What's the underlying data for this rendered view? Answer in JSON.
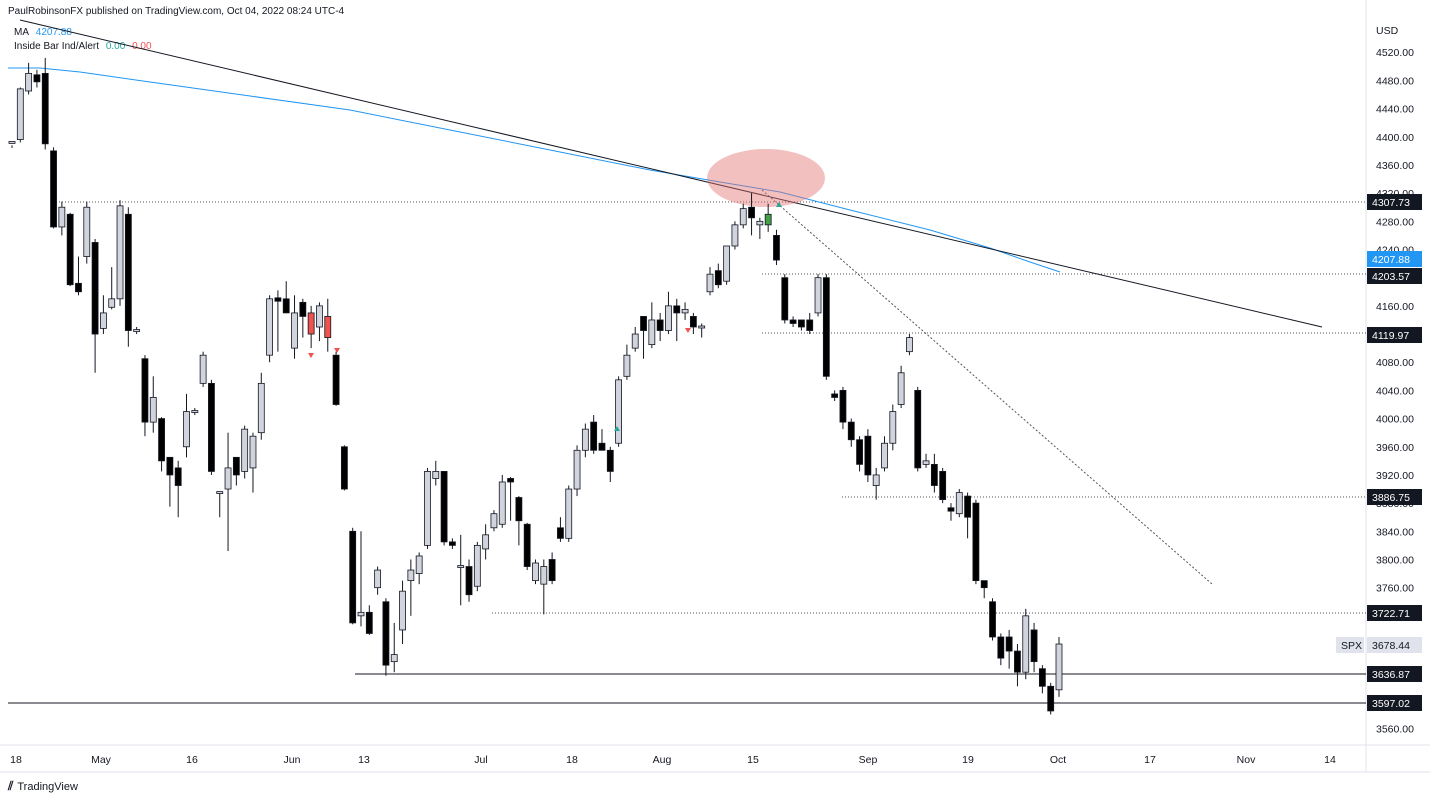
{
  "header": {
    "publisher": "PaulRobinsonFX published on TradingView.com, Oct 04, 2022 08:24 UTC-4"
  },
  "legend": {
    "ma": {
      "label": "MA",
      "value": "4207.88",
      "color": "#2196f3"
    },
    "inside_bar": {
      "label": "Inside Bar Ind/Alert",
      "v1": "0.00",
      "v1_color": "#26a69a",
      "v2": "0.00",
      "v2_color": "#ef5350"
    }
  },
  "footer": {
    "brand": "TradingView"
  },
  "chart_data": {
    "type": "candlestick",
    "currency": "USD",
    "symbol": "SPX",
    "y_range": [
      3540,
      4550
    ],
    "y_ticks": [
      3560,
      3600,
      3640,
      3680,
      3720,
      3760,
      3800,
      3840,
      3880,
      3920,
      3960,
      4000,
      4040,
      4080,
      4120,
      4160,
      4200,
      4240,
      4280,
      4320,
      4360,
      4400,
      4440,
      4480,
      4520
    ],
    "x_labels": [
      "18",
      "May",
      "16",
      "Jun",
      "13",
      "Jul",
      "18",
      "Aug",
      "15",
      "Sep",
      "19",
      "Oct",
      "17",
      "Nov",
      "14"
    ],
    "price_labels": [
      {
        "value": 4307.73,
        "text": "4307.73",
        "bg": "#131722",
        "fg": "#ffffff"
      },
      {
        "value": 4207.88,
        "text": "4207.88",
        "bg": "#2196f3",
        "fg": "#ffffff"
      },
      {
        "value": 4203.57,
        "text": "4203.57",
        "bg": "#131722",
        "fg": "#ffffff"
      },
      {
        "value": 4119.97,
        "text": "4119.97",
        "bg": "#131722",
        "fg": "#ffffff"
      },
      {
        "value": 3886.75,
        "text": "3886.75",
        "bg": "#131722",
        "fg": "#ffffff"
      },
      {
        "value": 3722.71,
        "text": "3722.71",
        "bg": "#131722",
        "fg": "#ffffff"
      },
      {
        "value": 3678.44,
        "text": "3678.44",
        "bg": "#e0e3eb",
        "fg": "#131722",
        "tag": "SPX"
      },
      {
        "value": 3636.87,
        "text": "3636.87",
        "bg": "#131722",
        "fg": "#ffffff"
      },
      {
        "value": 3597.02,
        "text": "3597.02",
        "bg": "#131722",
        "fg": "#ffffff"
      }
    ],
    "candles": [
      [
        4392,
        4392,
        4388,
        4384
      ],
      [
        4396,
        4468,
        4470,
        4392
      ],
      [
        4465,
        4490,
        4505,
        4460
      ],
      [
        4488,
        4478,
        4495,
        4470
      ],
      [
        4490,
        4390,
        4512,
        4382
      ],
      [
        4380,
        4272,
        4385,
        4270
      ],
      [
        4272,
        4300,
        4308,
        4260
      ],
      [
        4290,
        4190,
        4292,
        4188
      ],
      [
        4192,
        4180,
        4230,
        4175
      ],
      [
        4230,
        4300,
        4308,
        4220
      ],
      [
        4250,
        4120,
        4255,
        4065
      ],
      [
        4128,
        4150,
        4175,
        4120
      ],
      [
        4158,
        4170,
        4215,
        4155
      ],
      [
        4170,
        4302,
        4310,
        4160
      ],
      [
        4290,
        4125,
        4300,
        4102
      ],
      [
        4125,
        4125,
        4130,
        4120
      ],
      [
        4085,
        3995,
        4090,
        3975
      ],
      [
        3995,
        4030,
        4060,
        3980
      ],
      [
        4000,
        3940,
        4002,
        3925
      ],
      [
        3945,
        3920,
        3945,
        3875
      ],
      [
        3930,
        3905,
        3940,
        3860
      ],
      [
        3960,
        4010,
        4035,
        3945
      ],
      [
        4010,
        4010,
        4015,
        4005
      ],
      [
        4050,
        4090,
        4095,
        4045
      ],
      [
        4050,
        3925,
        4055,
        3920
      ],
      [
        3895,
        3895,
        3896,
        3860
      ],
      [
        3900,
        3930,
        3980,
        3812
      ],
      [
        3945,
        3920,
        3945,
        3905
      ],
      [
        3925,
        3985,
        3990,
        3915
      ],
      [
        3930,
        3975,
        3980,
        3895
      ],
      [
        3980,
        4050,
        4065,
        3970
      ],
      [
        4090,
        4170,
        4175,
        4080
      ],
      [
        4170,
        4168,
        4182,
        4095
      ],
      [
        4170,
        4150,
        4195,
        4150
      ],
      [
        4100,
        4150,
        4175,
        4085
      ],
      [
        4165,
        4145,
        4170,
        4115
      ],
      [
        4150,
        4120,
        4160,
        4100
      ],
      [
        4130,
        4160,
        4165,
        4110
      ],
      [
        4145,
        4115,
        4170,
        4095
      ],
      [
        4090,
        4020,
        4095,
        4018
      ],
      [
        3960,
        3900,
        3962,
        3898
      ],
      [
        3840,
        3710,
        3845,
        3708
      ],
      [
        3720,
        3725,
        3840,
        3705
      ],
      [
        3725,
        3695,
        3735,
        3693
      ],
      [
        3760,
        3785,
        3790,
        3750
      ],
      [
        3740,
        3650,
        3745,
        3635
      ],
      [
        3655,
        3665,
        3710,
        3640
      ],
      [
        3700,
        3755,
        3770,
        3680
      ],
      [
        3770,
        3785,
        3800,
        3720
      ],
      [
        3780,
        3805,
        3810,
        3765
      ],
      [
        3820,
        3925,
        3930,
        3815
      ],
      [
        3915,
        3925,
        3940,
        3905
      ],
      [
        3925,
        3825,
        3925,
        3820
      ],
      [
        3825,
        3820,
        3830,
        3815
      ],
      [
        3790,
        3790,
        3835,
        3735
      ],
      [
        3790,
        3750,
        3800,
        3740
      ],
      [
        3762,
        3820,
        3825,
        3755
      ],
      [
        3815,
        3835,
        3850,
        3800
      ],
      [
        3845,
        3865,
        3870,
        3840
      ],
      [
        3850,
        3910,
        3920,
        3845
      ],
      [
        3915,
        3910,
        3917,
        3855
      ],
      [
        3888,
        3855,
        3890,
        3820
      ],
      [
        3850,
        3790,
        3852,
        3785
      ],
      [
        3770,
        3795,
        3800,
        3765
      ],
      [
        3765,
        3790,
        3800,
        3722
      ],
      [
        3800,
        3770,
        3810,
        3765
      ],
      [
        3845,
        3830,
        3860,
        3825
      ],
      [
        3830,
        3900,
        3905,
        3825
      ],
      [
        3900,
        3955,
        3962,
        3890
      ],
      [
        3955,
        3985,
        3993,
        3945
      ],
      [
        3995,
        3955,
        4005,
        3950
      ],
      [
        3965,
        3955,
        3985,
        3955
      ],
      [
        3955,
        3925,
        3960,
        3910
      ],
      [
        3965,
        4055,
        4060,
        3960
      ],
      [
        4060,
        4090,
        4105,
        4055
      ],
      [
        4100,
        4120,
        4130,
        4095
      ],
      [
        4145,
        4125,
        4145,
        4085
      ],
      [
        4105,
        4140,
        4165,
        4100
      ],
      [
        4140,
        4125,
        4150,
        4110
      ],
      [
        4125,
        4160,
        4180,
        4120
      ],
      [
        4160,
        4150,
        4170,
        4110
      ],
      [
        4150,
        4155,
        4165,
        4140
      ],
      [
        4145,
        4130,
        4150,
        4120
      ],
      [
        4130,
        4130,
        4135,
        4115
      ],
      [
        4180,
        4205,
        4215,
        4175
      ],
      [
        4210,
        4190,
        4220,
        4185
      ],
      [
        4195,
        4245,
        4245,
        4190
      ],
      [
        4245,
        4275,
        4280,
        4240
      ],
      [
        4275,
        4298,
        4305,
        4270
      ],
      [
        4300,
        4285,
        4320,
        4260
      ],
      [
        4275,
        4280,
        4285,
        4255
      ],
      [
        4275,
        4290,
        4305,
        4265
      ],
      [
        4260,
        4225,
        4268,
        4218
      ],
      [
        4200,
        4140,
        4205,
        4135
      ],
      [
        4140,
        4135,
        4145,
        4130
      ],
      [
        4140,
        4130,
        4140,
        4125
      ],
      [
        4140,
        4125,
        4150,
        4120
      ],
      [
        4150,
        4200,
        4205,
        4145
      ],
      [
        4200,
        4060,
        4205,
        4055
      ],
      [
        4035,
        4030,
        4040,
        4025
      ],
      [
        4040,
        3995,
        4045,
        3985
      ],
      [
        3995,
        3970,
        4000,
        3960
      ],
      [
        3970,
        3935,
        3975,
        3925
      ],
      [
        3975,
        3920,
        3985,
        3910
      ],
      [
        3905,
        3920,
        3930,
        3885
      ],
      [
        3930,
        3965,
        3975,
        3925
      ],
      [
        3965,
        4010,
        4020,
        3955
      ],
      [
        4020,
        4065,
        4075,
        4015
      ],
      [
        4095,
        4115,
        4120,
        4090
      ],
      [
        4040,
        3930,
        4045,
        3925
      ],
      [
        3935,
        3940,
        3950,
        3930
      ],
      [
        3935,
        3905,
        3950,
        3895
      ],
      [
        3925,
        3885,
        3930,
        3880
      ],
      [
        3872,
        3870,
        3880,
        3855
      ],
      [
        3865,
        3895,
        3900,
        3860
      ],
      [
        3890,
        3860,
        3895,
        3830
      ],
      [
        3880,
        3770,
        3885,
        3765
      ],
      [
        3770,
        3760,
        3770,
        3745
      ],
      [
        3740,
        3690,
        3745,
        3685
      ],
      [
        3690,
        3660,
        3695,
        3650
      ],
      [
        3690,
        3670,
        3700,
        3645
      ],
      [
        3670,
        3640,
        3680,
        3620
      ],
      [
        3640,
        3720,
        3730,
        3630
      ],
      [
        3700,
        3655,
        3710,
        3640
      ],
      [
        3645,
        3620,
        3650,
        3610
      ],
      [
        3620,
        3585,
        3625,
        3580
      ],
      [
        3615,
        3680,
        3690,
        3605
      ]
    ],
    "moving_average_color": "#2196f3",
    "highlight_color": "#e57373"
  }
}
